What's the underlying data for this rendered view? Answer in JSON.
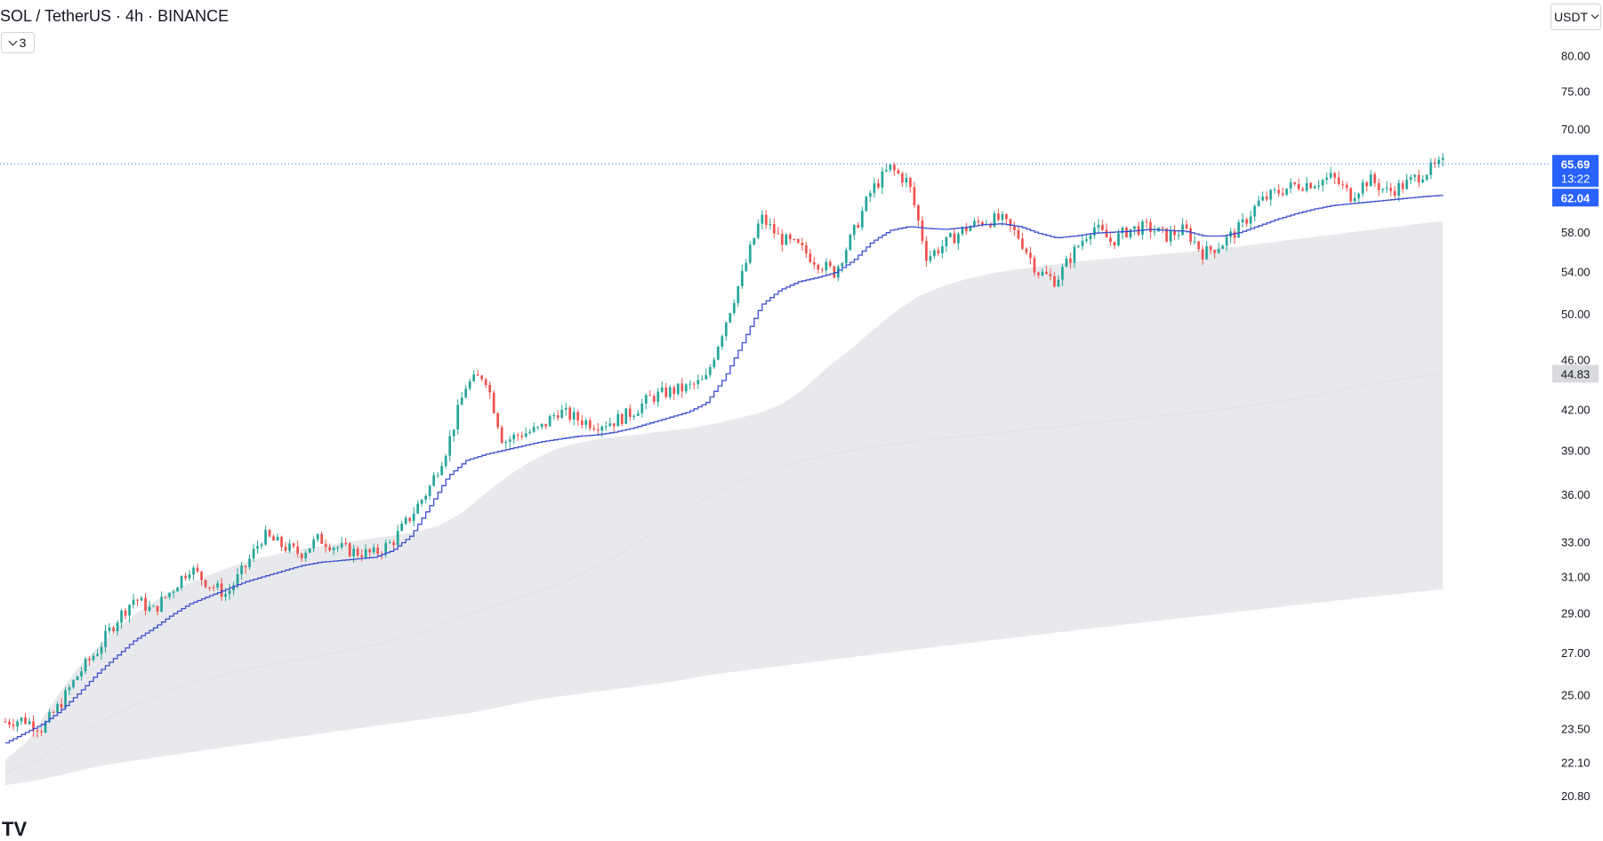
{
  "header": {
    "title": "SOL / TetherUS · 4h · BINANCE",
    "indicator_count": "3",
    "currency_label": "USDT"
  },
  "logo": "TV",
  "colors": {
    "up": "#26a69a",
    "down": "#ef5350",
    "ma_line": "#3c4fd1",
    "cloud": "#e8e9ec",
    "price_line": "#2962ff",
    "axis_text": "#131722",
    "price_tag": "#2962ff",
    "grey_tag": "#d9dadd"
  },
  "chart_data": {
    "type": "line",
    "symbol": "SOL / TetherUS",
    "interval": "4h",
    "exchange": "BINANCE",
    "scale": "log",
    "y_axis_ticks": [
      80.0,
      75.0,
      70.0,
      58.0,
      54.0,
      50.0,
      46.0,
      42.0,
      39.0,
      36.0,
      33.0,
      31.0,
      29.0,
      27.0,
      25.0,
      23.5,
      22.1,
      20.8
    ],
    "y_axis_tick_labels": [
      "80.00",
      "75.00",
      "70.00",
      "58.00",
      "54.00",
      "50.00",
      "46.00",
      "42.00",
      "39.00",
      "36.00",
      "33.00",
      "31.00",
      "29.00",
      "27.00",
      "25.00",
      "23.50",
      "22.10",
      "20.80"
    ],
    "last_price": 65.69,
    "last_price_label": "65.69",
    "countdown_label": "13:22",
    "ma_last_value": 62.04,
    "ma_last_label": "62.04",
    "band_mid_last": 44.83,
    "band_mid_label": "44.83",
    "close_series": [
      23.8,
      23.9,
      23.5,
      24.6,
      26.0,
      27.1,
      28.6,
      29.8,
      29.1,
      30.2,
      31.5,
      30.6,
      30.0,
      31.5,
      33.4,
      32.8,
      32.3,
      33.2,
      32.7,
      32.4,
      32.3,
      33.0,
      34.6,
      36.4,
      39.3,
      43.9,
      44.8,
      39.6,
      40.2,
      40.5,
      41.9,
      41.3,
      40.9,
      41.1,
      41.8,
      42.9,
      43.4,
      43.7,
      44.3,
      48.9,
      53.7,
      59.6,
      57.4,
      56.5,
      55.0,
      53.9,
      57.8,
      62.6,
      65.2,
      63.5,
      55.4,
      56.8,
      58.3,
      59.2,
      59.4,
      57.5,
      54.0,
      53.1,
      56.0,
      58.7,
      57.0,
      58.3,
      58.5,
      57.6,
      58.3,
      55.8,
      56.8,
      58.5,
      61.2,
      62.4,
      63.2,
      63.5,
      64.1,
      62.0,
      63.9,
      62.4,
      63.3,
      64.7,
      65.69
    ],
    "ma_series": [
      22.9,
      23.3,
      23.7,
      24.3,
      25.1,
      26.0,
      26.8,
      27.6,
      28.2,
      28.9,
      29.5,
      29.9,
      30.3,
      30.7,
      31.0,
      31.3,
      31.6,
      31.8,
      31.9,
      32.0,
      32.1,
      32.5,
      33.4,
      35.2,
      37.2,
      38.3,
      38.7,
      39.0,
      39.3,
      39.6,
      39.8,
      40.0,
      40.1,
      40.3,
      40.6,
      41.0,
      41.4,
      41.8,
      42.5,
      44.5,
      47.5,
      50.8,
      52.2,
      53.0,
      53.4,
      53.9,
      55.1,
      57.0,
      58.2,
      58.6,
      58.4,
      58.3,
      58.5,
      58.8,
      58.9,
      58.6,
      57.9,
      57.4,
      57.6,
      57.9,
      58.0,
      58.1,
      58.3,
      58.2,
      58.1,
      57.6,
      57.6,
      58.0,
      58.7,
      59.4,
      60.0,
      60.5,
      60.9,
      61.1,
      61.3,
      61.5,
      61.7,
      61.9,
      62.04
    ],
    "band_upper": [
      22.2,
      23.0,
      24.5,
      26.0,
      27.2,
      28.3,
      29.2,
      30.0,
      30.6,
      31.1,
      31.6,
      32.0,
      32.3,
      32.6,
      32.8,
      33.0,
      33.2,
      33.4,
      33.6,
      34.0,
      34.8,
      36.0,
      37.2,
      38.2,
      39.0,
      39.5,
      39.8,
      40.0,
      40.2,
      40.4,
      40.6,
      40.9,
      41.3,
      41.7,
      42.4,
      43.6,
      45.3,
      46.8,
      48.5,
      50.2,
      51.6,
      52.5,
      53.2,
      53.7,
      54.1,
      54.4,
      54.7,
      55.0,
      55.2,
      55.4,
      55.6,
      55.8,
      56.0,
      56.3,
      56.5,
      56.8,
      57.1,
      57.4,
      57.7,
      58.0,
      58.3,
      58.6,
      58.9,
      59.2
    ],
    "band_mid": [
      21.7,
      22.2,
      23.0,
      23.8,
      24.5,
      25.1,
      25.6,
      26.0,
      26.3,
      26.6,
      26.9,
      27.2,
      27.5,
      28.0,
      28.6,
      29.2,
      29.8,
      30.4,
      31.1,
      32.0,
      33.2,
      34.6,
      35.8,
      36.9,
      37.7,
      38.3,
      38.8,
      39.2,
      39.5,
      39.8,
      40.0,
      40.2,
      40.5,
      40.7,
      41.0,
      41.2,
      41.5,
      41.7,
      42.0,
      42.3,
      42.7,
      43.1,
      43.6,
      44.1,
      44.5,
      44.83
    ],
    "band_lower": [
      21.2,
      21.4,
      21.7,
      22.0,
      22.2,
      22.4,
      22.6,
      22.8,
      23.0,
      23.2,
      23.4,
      23.6,
      23.8,
      24.0,
      24.2,
      24.5,
      24.8,
      25.0,
      25.2,
      25.4,
      25.6,
      25.9,
      26.1,
      26.3,
      26.5,
      26.7,
      26.9,
      27.1,
      27.3,
      27.5,
      27.7,
      27.9,
      28.1,
      28.3,
      28.5,
      28.7,
      28.9,
      29.1,
      29.3,
      29.5,
      29.7,
      29.9,
      30.1,
      30.3
    ]
  }
}
